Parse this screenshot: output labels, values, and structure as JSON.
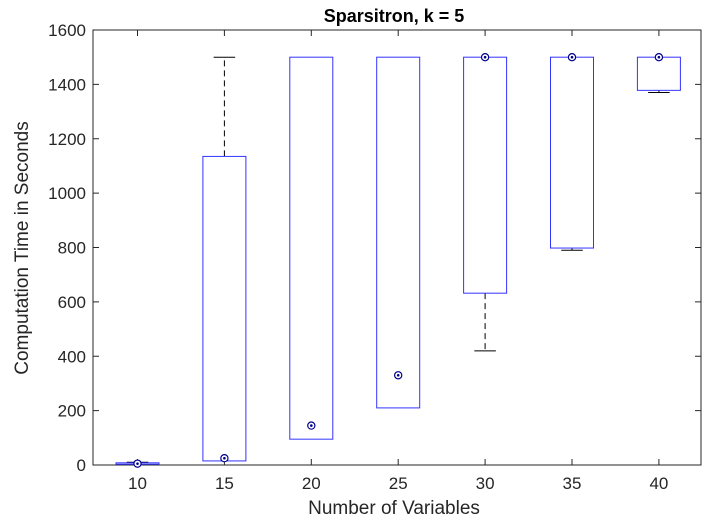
{
  "chart_data": {
    "type": "box",
    "title": "Sparsitron, k = 5",
    "xlabel": "Number of Variables",
    "ylabel": "Computation Time in Seconds",
    "ylim": [
      0,
      1600
    ],
    "yticks": [
      0,
      200,
      400,
      600,
      800,
      1000,
      1200,
      1400,
      1600
    ],
    "categories": [
      "10",
      "15",
      "20",
      "25",
      "30",
      "35",
      "40"
    ],
    "grid": false,
    "box_color": "#3333ff",
    "whisker_color": "#000000",
    "median_marker_color": "#00008b",
    "boxes": [
      {
        "category": "10",
        "min": 2,
        "q1": 3,
        "median": 5,
        "q3": 8,
        "max": 10
      },
      {
        "category": "15",
        "min": 15,
        "q1": 15,
        "median": 25,
        "q3": 1135,
        "max": 1500
      },
      {
        "category": "20",
        "min": 95,
        "q1": 95,
        "median": 145,
        "q3": 1500,
        "max": 1500
      },
      {
        "category": "25",
        "min": 210,
        "q1": 210,
        "median": 330,
        "q3": 1500,
        "max": 1500
      },
      {
        "category": "30",
        "min": 420,
        "q1": 632,
        "median": 1500,
        "q3": 1500,
        "max": 1500
      },
      {
        "category": "35",
        "min": 790,
        "q1": 798,
        "median": 1500,
        "q3": 1500,
        "max": 1500
      },
      {
        "category": "40",
        "min": 1370,
        "q1": 1378,
        "median": 1500,
        "q3": 1500,
        "max": 1500
      }
    ]
  }
}
